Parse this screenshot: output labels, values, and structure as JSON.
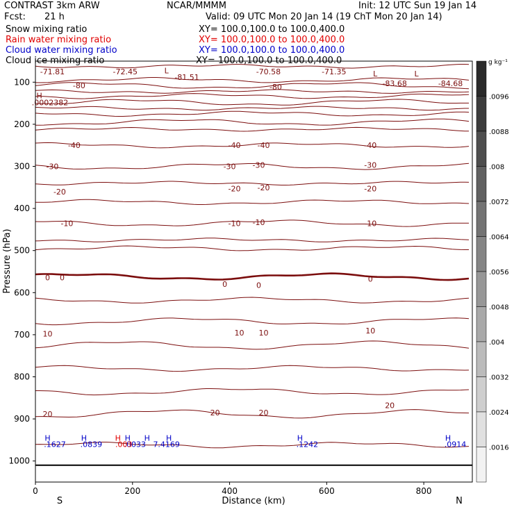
{
  "header": {
    "model": "CONTRAST  3km ARW",
    "center": "NCAR/MMMM",
    "init": "Init: 12 UTC Sun 19 Jan 14",
    "fcst_label": "Fcst:",
    "fcst_value": "21 h",
    "valid": "Valid: 09 UTC Mon 20 Jan 14 (19 ChT Mon 20 Jan 14)"
  },
  "fields": [
    {
      "name": "Snow mixing ratio",
      "xy": "XY= 100.0,100.0 to 100.0,400.0",
      "color": "#000000"
    },
    {
      "name": "Rain water mixing ratio",
      "xy": "XY= 100.0,100.0 to 100.0,400.0",
      "color": "#e00000"
    },
    {
      "name": "Cloud water mixing ratio",
      "xy": "XY= 100.0,100.0 to 100.0,400.0",
      "color": "#0000c8"
    },
    {
      "name": "Cloud ice mixing ratio",
      "xy": "XY= 100.0,100.0 to 100.0,400.0",
      "color": "#000000"
    }
  ],
  "chart_data": {
    "type": "contour",
    "xlabel": "Distance (km)",
    "ylabel": "Pressure (hPa)",
    "xlim": [
      0,
      900
    ],
    "ylim": [
      1050,
      50
    ],
    "x_ticks": [
      "0",
      "200",
      "400",
      "600",
      "800"
    ],
    "y_ticks": [
      "100",
      "200",
      "300",
      "400",
      "500",
      "600",
      "700",
      "800",
      "900",
      "1000"
    ],
    "x_end_labels": {
      "left": "S",
      "right": "N"
    },
    "colorbar": {
      "unit": "g kg⁻¹",
      "labels": [
        ".0096",
        ".0088",
        ".008",
        ".0072",
        ".0064",
        ".0056",
        ".0048",
        ".004",
        ".0032",
        ".0024",
        ".0016"
      ],
      "color_range": [
        "#f2f2f2",
        "#2a2a2a"
      ]
    },
    "contour_color": "#7b0d0d",
    "contour_pressures": [
      62,
      95,
      108,
      122,
      133,
      148,
      162,
      175,
      195,
      212,
      250,
      300,
      340,
      385,
      435,
      475,
      495,
      562,
      618,
      668,
      725,
      780,
      835,
      888,
      962
    ],
    "zero_isotherm_pressure": 562,
    "contour_labels": [
      {
        "text": "-71.81",
        "x": 35,
        "p": 75
      },
      {
        "text": "-72.45",
        "x": 185,
        "p": 75
      },
      {
        "text": "L",
        "x": 270,
        "p": 72
      },
      {
        "text": "-81.51",
        "x": 312,
        "p": 88
      },
      {
        "text": "-70.58",
        "x": 480,
        "p": 75
      },
      {
        "text": "-71.35",
        "x": 615,
        "p": 75
      },
      {
        "text": "L",
        "x": 700,
        "p": 80
      },
      {
        "text": "L",
        "x": 785,
        "p": 80
      },
      {
        "text": "-80",
        "x": 90,
        "p": 108
      },
      {
        "text": "-80",
        "x": 495,
        "p": 111
      },
      {
        "text": "-83.68",
        "x": 740,
        "p": 103
      },
      {
        "text": "-84.68",
        "x": 855,
        "p": 103
      },
      {
        "text": "H",
        "x": 8,
        "p": 132
      },
      {
        "text": ".0002382",
        "x": 30,
        "p": 148
      },
      {
        "text": "-40",
        "x": 80,
        "p": 250
      },
      {
        "text": "-40",
        "x": 410,
        "p": 250
      },
      {
        "text": "-40",
        "x": 470,
        "p": 250
      },
      {
        "text": "-40",
        "x": 690,
        "p": 250
      },
      {
        "text": "-30",
        "x": 35,
        "p": 300
      },
      {
        "text": "-30",
        "x": 400,
        "p": 300
      },
      {
        "text": "-30",
        "x": 460,
        "p": 297
      },
      {
        "text": "-30",
        "x": 690,
        "p": 297
      },
      {
        "text": "-20",
        "x": 50,
        "p": 360
      },
      {
        "text": "-20",
        "x": 410,
        "p": 353
      },
      {
        "text": "-20",
        "x": 470,
        "p": 350
      },
      {
        "text": "-20",
        "x": 690,
        "p": 353
      },
      {
        "text": "-10",
        "x": 65,
        "p": 435
      },
      {
        "text": "-10",
        "x": 410,
        "p": 435
      },
      {
        "text": "-10",
        "x": 460,
        "p": 433
      },
      {
        "text": "-10",
        "x": 690,
        "p": 435
      },
      {
        "text": "0",
        "x": 25,
        "p": 564
      },
      {
        "text": "0",
        "x": 55,
        "p": 564
      },
      {
        "text": "0",
        "x": 390,
        "p": 580
      },
      {
        "text": "0",
        "x": 460,
        "p": 582
      },
      {
        "text": "0",
        "x": 690,
        "p": 567
      },
      {
        "text": "10",
        "x": 25,
        "p": 698
      },
      {
        "text": "10",
        "x": 420,
        "p": 695
      },
      {
        "text": "10",
        "x": 470,
        "p": 695
      },
      {
        "text": "10",
        "x": 690,
        "p": 690
      },
      {
        "text": "20",
        "x": 25,
        "p": 888
      },
      {
        "text": "20",
        "x": 370,
        "p": 885
      },
      {
        "text": "20",
        "x": 470,
        "p": 885
      },
      {
        "text": "20",
        "x": 730,
        "p": 868
      }
    ],
    "cloud_water_labels": [
      {
        "text": "H",
        "x": 25,
        "p": 945
      },
      {
        "text": ".1627",
        "x": 40,
        "p": 960
      },
      {
        "text": "H",
        "x": 100,
        "p": 945
      },
      {
        "text": ".0839",
        "x": 115,
        "p": 960
      },
      {
        "text": "H",
        "x": 190,
        "p": 945
      },
      {
        "text": "H",
        "x": 230,
        "p": 945
      },
      {
        "text": "H",
        "x": 275,
        "p": 945
      },
      {
        "text": ".0033",
        "x": 205,
        "p": 960
      },
      {
        "text": "7.4169",
        "x": 270,
        "p": 960
      },
      {
        "text": "H",
        "x": 545,
        "p": 945
      },
      {
        "text": ".1242",
        "x": 560,
        "p": 960
      },
      {
        "text": "H",
        "x": 850,
        "p": 945
      },
      {
        "text": ".0914",
        "x": 865,
        "p": 960
      }
    ],
    "rain_labels": [
      {
        "text": "H",
        "x": 170,
        "p": 945
      },
      {
        "text": ".003",
        "x": 182,
        "p": 960
      }
    ]
  }
}
